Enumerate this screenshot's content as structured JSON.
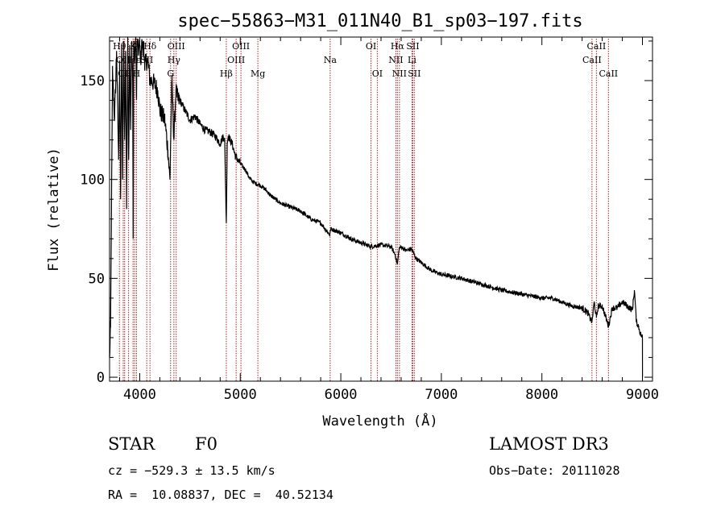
{
  "chart_data": {
    "type": "line",
    "title": "spec−55863−M31_011N40_B1_sp03−197.fits",
    "xlabel": "Wavelength (Å)",
    "ylabel": "Flux (relative)",
    "xlim": [
      3700,
      9100
    ],
    "ylim": [
      -2,
      172
    ],
    "x_ticks": [
      4000,
      5000,
      6000,
      7000,
      8000,
      9000
    ],
    "x_tick_labels": [
      "4000",
      "5000",
      "6000",
      "7000",
      "8000",
      "9000"
    ],
    "y_ticks": [
      0,
      50,
      100,
      150
    ],
    "y_tick_labels": [
      "0",
      "50",
      "100",
      "150"
    ],
    "grid": false,
    "line_color": "#000000",
    "marker_color": "#b22222",
    "series": [
      {
        "name": "flux",
        "x": [
          3700,
          3710,
          3730,
          3750,
          3770,
          3790,
          3800,
          3810,
          3820,
          3830,
          3840,
          3850,
          3860,
          3870,
          3880,
          3890,
          3900,
          3910,
          3920,
          3930,
          3935,
          3940,
          3950,
          3960,
          3968,
          3975,
          3990,
          4000,
          4010,
          4020,
          4030,
          4040,
          4050,
          4060,
          4080,
          4102,
          4120,
          4150,
          4180,
          4200,
          4250,
          4280,
          4300,
          4320,
          4340,
          4360,
          4380,
          4400,
          4450,
          4500,
          4550,
          4600,
          4650,
          4700,
          4750,
          4800,
          4830,
          4845,
          4861,
          4870,
          4880,
          4900,
          4920,
          4950,
          5000,
          5050,
          5100,
          5150,
          5200,
          5250,
          5300,
          5400,
          5500,
          5600,
          5700,
          5800,
          5890,
          5900,
          6000,
          6100,
          6200,
          6300,
          6400,
          6500,
          6540,
          6563,
          6580,
          6600,
          6650,
          6700,
          6750,
          6800,
          6900,
          7000,
          7200,
          7400,
          7600,
          7800,
          8000,
          8100,
          8200,
          8300,
          8400,
          8450,
          8498,
          8520,
          8542,
          8560,
          8600,
          8662,
          8700,
          8750,
          8800,
          8850,
          8900,
          8920,
          8940,
          8960,
          8980,
          9000,
          9001
        ],
        "y": [
          10,
          25,
          155,
          130,
          165,
          110,
          160,
          90,
          168,
          100,
          170,
          120,
          165,
          85,
          172,
          110,
          168,
          125,
          170,
          150,
          70,
          168,
          160,
          172,
          140,
          170,
          165,
          168,
          160,
          170,
          165,
          170,
          155,
          160,
          160,
          150,
          150,
          148,
          145,
          135,
          130,
          115,
          100,
          150,
          120,
          145,
          140,
          140,
          135,
          130,
          132,
          128,
          125,
          124,
          122,
          118,
          122,
          120,
          78,
          118,
          122,
          120,
          118,
          112,
          108,
          105,
          100,
          98,
          97,
          95,
          92,
          88,
          86,
          84,
          80,
          78,
          72,
          75,
          73,
          70,
          68,
          66,
          67,
          66,
          62,
          57,
          65,
          66,
          64,
          65,
          60,
          58,
          54,
          52,
          50,
          47,
          44,
          42,
          40,
          40,
          38,
          36,
          35,
          33,
          28,
          38,
          30,
          36,
          36,
          26,
          35,
          35,
          38,
          36,
          34,
          44,
          28,
          26,
          22,
          20,
          0
        ]
      }
    ],
    "line_markers": [
      {
        "x": 3798,
        "label": "Hθ",
        "row": 0
      },
      {
        "x": 3836,
        "label": "OII",
        "row": 1
      },
      {
        "x": 3850,
        "label": "CII",
        "row": 2
      },
      {
        "x": 3889,
        "label": "",
        "row": 2
      },
      {
        "x": 3934,
        "label": "K",
        "row": 0
      },
      {
        "x": 3950,
        "label": "Hε",
        "row": 1
      },
      {
        "x": 3968,
        "label": "H",
        "row": 2
      },
      {
        "x": 4070,
        "label": "SII",
        "row": 1
      },
      {
        "x": 4102,
        "label": "Hδ",
        "row": 0
      },
      {
        "x": 4307,
        "label": "G",
        "row": 2
      },
      {
        "x": 4340,
        "label": "Hγ",
        "row": 1
      },
      {
        "x": 4363,
        "label": "OIII",
        "row": 0
      },
      {
        "x": 4861,
        "label": "Hβ",
        "row": 2
      },
      {
        "x": 4959,
        "label": "OIII",
        "row": 1
      },
      {
        "x": 5007,
        "label": "OIII",
        "row": 0
      },
      {
        "x": 5175,
        "label": "Mg",
        "row": 2
      },
      {
        "x": 5894,
        "label": "Na",
        "row": 1
      },
      {
        "x": 6300,
        "label": "OI",
        "row": 0
      },
      {
        "x": 6363,
        "label": "OI",
        "row": 2
      },
      {
        "x": 6548,
        "label": "NII",
        "row": 1
      },
      {
        "x": 6563,
        "label": "Hα",
        "row": 0
      },
      {
        "x": 6583,
        "label": "NII",
        "row": 2
      },
      {
        "x": 6708,
        "label": "Li",
        "row": 1
      },
      {
        "x": 6716,
        "label": "SII",
        "row": 0
      },
      {
        "x": 6731,
        "label": "SII",
        "row": 2
      },
      {
        "x": 8498,
        "label": "CaII",
        "row": 1
      },
      {
        "x": 8542,
        "label": "CaII",
        "row": 0
      },
      {
        "x": 8662,
        "label": "CaII",
        "row": 2
      }
    ]
  },
  "info": {
    "object_class": "STAR",
    "subclass": "F0",
    "survey": "LAMOST DR3",
    "velocity": "cz = −529.3 ± 13.5 km/s",
    "obs_date": "Obs−Date: 20111028",
    "coordinates": "RA =  10.08837, DEC =  40.52134"
  }
}
